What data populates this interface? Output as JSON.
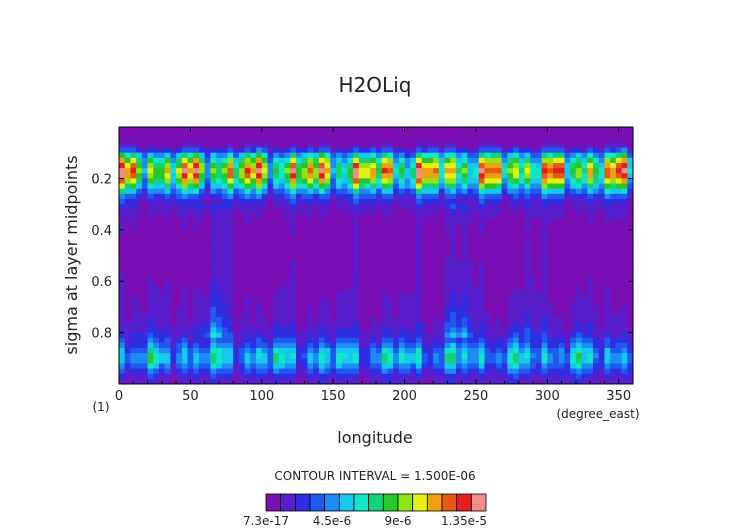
{
  "chart_data": {
    "type": "heatmap",
    "title": "H2OLiq",
    "xlabel": "longitude",
    "ylabel": "sigma at layer midpoints",
    "x_units": "(degree_east)",
    "y_units": "(1)",
    "xlim": [
      0,
      360
    ],
    "ylim": [
      1.0,
      0.0
    ],
    "x_ticks": [
      0,
      50,
      100,
      150,
      200,
      250,
      300,
      350
    ],
    "y_ticks": [
      0.2,
      0.4,
      0.6,
      0.8
    ],
    "contour_interval_text": "CONTOUR INTERVAL = 1.500E-06",
    "colorbar": {
      "tick_labels": [
        "7.3e-17",
        "4.5e-6",
        "9e-6",
        "1.35e-5"
      ],
      "tick_values": [
        0,
        4.5e-06,
        9e-06,
        1.35e-05
      ],
      "min": 0,
      "max": 1.5e-05,
      "colors": [
        "#7a0fb4",
        "#5a1fcc",
        "#2f2ee0",
        "#1f5af0",
        "#1e8cf5",
        "#16c8f0",
        "#12e6c8",
        "#14d27a",
        "#28c828",
        "#8ee614",
        "#e6f014",
        "#f0a014",
        "#e65a14",
        "#e61e1e",
        "#f08c8c"
      ]
    },
    "profile": {
      "sigma": [
        0.02,
        0.05,
        0.08,
        0.11,
        0.14,
        0.17,
        0.2,
        0.23,
        0.26,
        0.29,
        0.32,
        0.36,
        0.42,
        0.5,
        0.58,
        0.66,
        0.74,
        0.8,
        0.84,
        0.87,
        0.9,
        0.93,
        0.96,
        0.98
      ],
      "value": [
        3e-07,
        4e-07,
        1.2e-06,
        5.5e-06,
        8.5e-06,
        1e-05,
        9e-06,
        6.5e-06,
        3.5e-06,
        2e-06,
        1.2e-06,
        8e-07,
        6e-07,
        6e-07,
        7e-07,
        9e-07,
        1.2e-06,
        1.8e-06,
        3e-06,
        4.5e-06,
        5.5e-06,
        4e-06,
        2.5e-06,
        1.5e-06
      ]
    }
  }
}
